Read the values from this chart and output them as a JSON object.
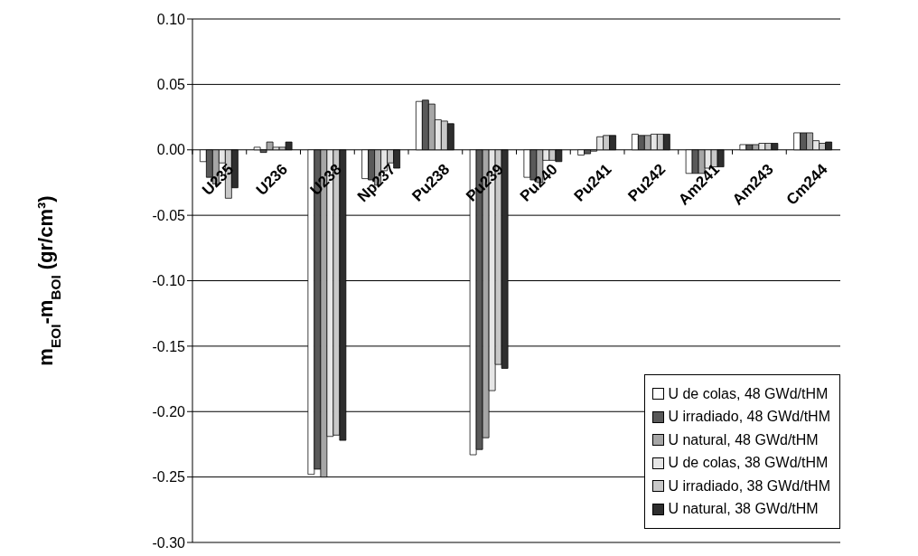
{
  "chart_data": {
    "type": "bar",
    "ylabel": "m$_{EOI}$-m$_{BOI}$   (gr/cm³)",
    "categories": [
      "U235",
      "U236",
      "U238",
      "Np237",
      "Pu238",
      "Pu239",
      "Pu240",
      "Pu241",
      "Pu242",
      "Am241",
      "Am243",
      "Cm244"
    ],
    "series": [
      {
        "name": "U de colas, 48 GWd/tHM",
        "color": "#ffffff",
        "values": [
          -0.009,
          0.002,
          -0.248,
          -0.022,
          0.037,
          -0.233,
          -0.021,
          -0.004,
          0.012,
          -0.018,
          0.004,
          0.013
        ]
      },
      {
        "name": "U irradiado, 48 GWd/tHM",
        "color": "#595959",
        "values": [
          -0.021,
          -0.002,
          -0.244,
          -0.023,
          0.038,
          -0.229,
          -0.023,
          -0.003,
          0.011,
          -0.018,
          0.004,
          0.013
        ]
      },
      {
        "name": "U natural, 48 GWd/tHM",
        "color": "#a6a6a6",
        "values": [
          -0.026,
          0.006,
          -0.25,
          -0.027,
          0.035,
          -0.22,
          -0.025,
          -0.001,
          0.011,
          -0.018,
          0.004,
          0.013
        ]
      },
      {
        "name": "U de colas, 38 GWd/tHM",
        "color": "#e6e6e6",
        "values": [
          -0.01,
          0.002,
          -0.219,
          -0.016,
          0.023,
          -0.184,
          -0.008,
          0.01,
          0.012,
          -0.014,
          0.005,
          0.007
        ]
      },
      {
        "name": "U irradiado, 38 GWd/tHM",
        "color": "#c8c8c8",
        "values": [
          -0.037,
          0.002,
          -0.218,
          -0.01,
          0.022,
          -0.164,
          -0.008,
          0.011,
          0.012,
          -0.013,
          0.005,
          0.005
        ]
      },
      {
        "name": "U natural, 38 GWd/tHM",
        "color": "#2e2e2e",
        "values": [
          -0.029,
          0.006,
          -0.222,
          -0.014,
          0.02,
          -0.167,
          -0.009,
          0.011,
          0.012,
          -0.013,
          0.005,
          0.006
        ]
      }
    ],
    "ylim": [
      -0.3,
      0.1
    ],
    "yticks": [
      {
        "value": -0.3,
        "label": "-0.30"
      },
      {
        "value": -0.25,
        "label": "-0.25"
      },
      {
        "value": -0.2,
        "label": "-0.20"
      },
      {
        "value": -0.15,
        "label": "-0.15"
      },
      {
        "value": -0.1,
        "label": "-0.10"
      },
      {
        "value": -0.05,
        "label": "-0.05"
      },
      {
        "value": 0,
        "label": "0.00"
      },
      {
        "value": 0.05,
        "label": "0.05"
      },
      {
        "value": 0.1,
        "label": "0.10"
      }
    ],
    "grid": "y",
    "legend": "bottom right"
  }
}
